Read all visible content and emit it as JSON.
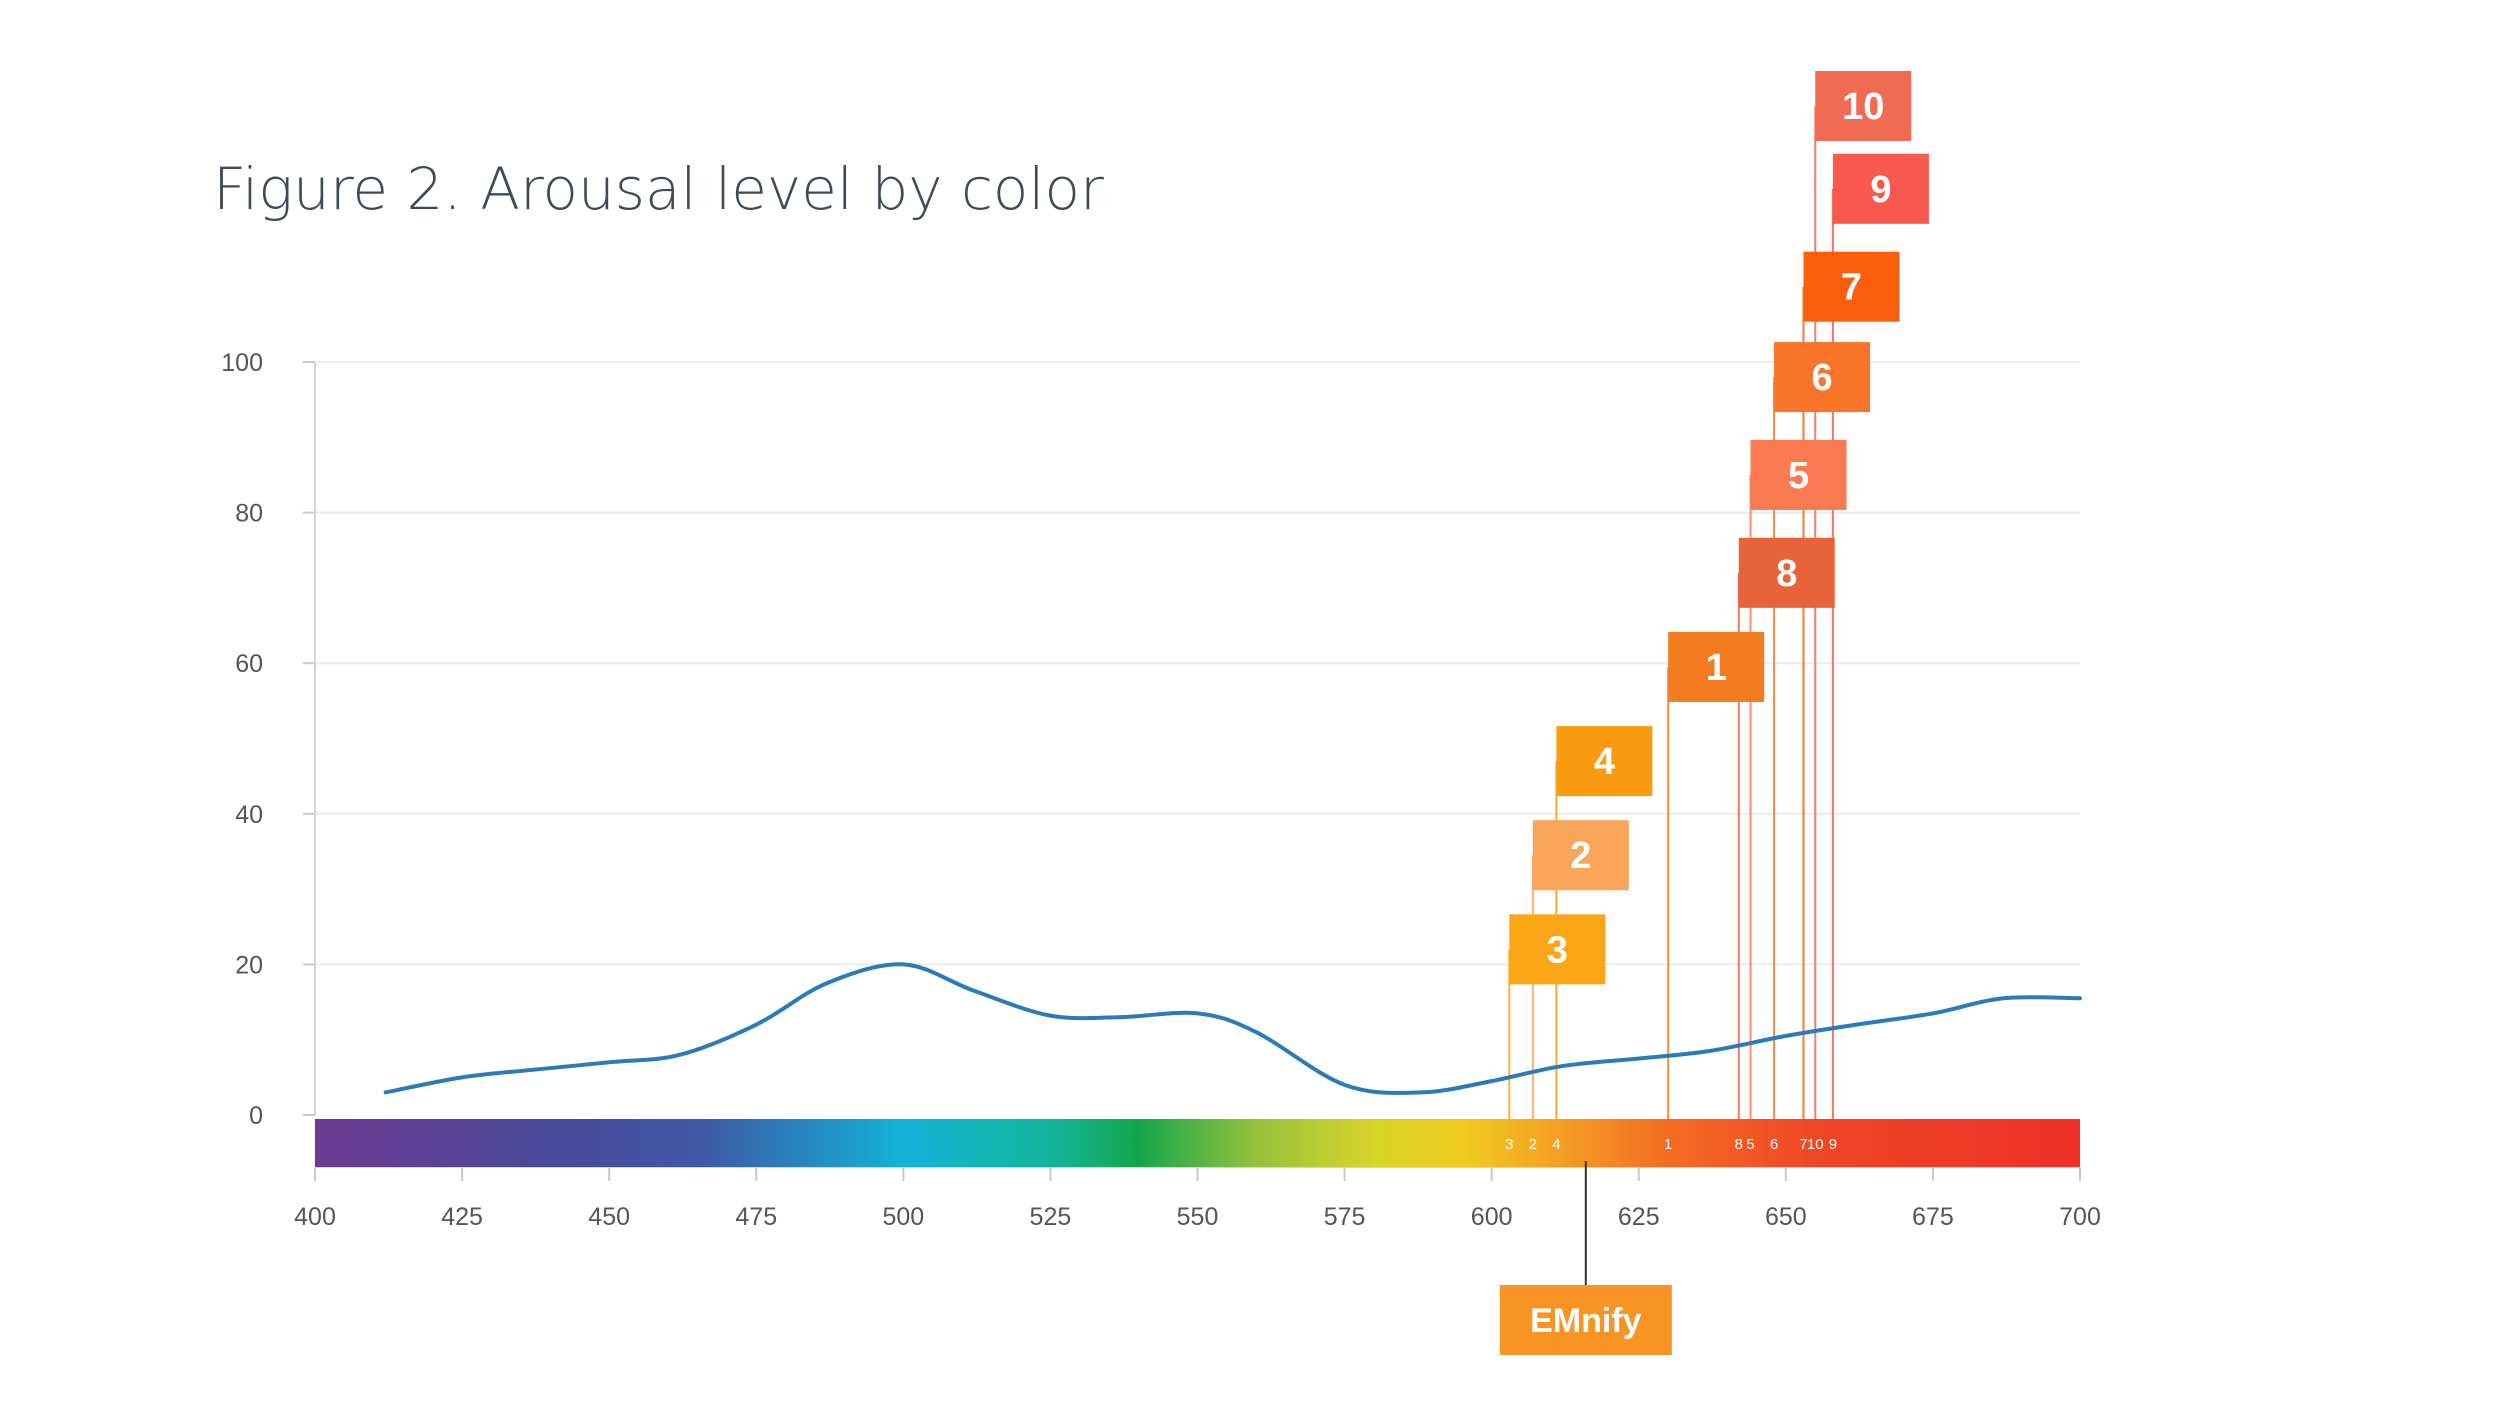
{
  "chart_data": {
    "type": "line",
    "title": "Figure 2. Arousal level by color",
    "xlim": [
      400,
      700
    ],
    "ylim": [
      0,
      100
    ],
    "x_ticks": [
      400,
      425,
      450,
      475,
      500,
      525,
      550,
      575,
      600,
      625,
      650,
      675,
      700
    ],
    "y_ticks": [
      0,
      20,
      40,
      60,
      80,
      100
    ],
    "grid": true,
    "series": [
      {
        "color": "#2b7bb9",
        "points": [
          [
            412,
            3
          ],
          [
            425,
            5
          ],
          [
            437,
            6
          ],
          [
            450,
            7
          ],
          [
            462,
            8
          ],
          [
            475,
            12
          ],
          [
            487,
            17.5
          ],
          [
            500,
            20
          ],
          [
            512,
            16.5
          ],
          [
            525,
            13.2
          ],
          [
            537,
            13
          ],
          [
            550,
            13.5
          ],
          [
            560,
            11
          ],
          [
            575,
            4
          ],
          [
            588,
            3
          ],
          [
            600,
            4.5
          ],
          [
            612,
            6.5
          ],
          [
            625,
            7.5
          ],
          [
            637,
            8.5
          ],
          [
            650,
            10.5
          ],
          [
            662,
            12
          ],
          [
            675,
            13.5
          ],
          [
            687,
            15.5
          ],
          [
            700,
            15.5
          ]
        ]
      }
    ],
    "markers": [
      {
        "label": "1",
        "wavelength": 630,
        "level": 59.5,
        "color": "#f47c20"
      },
      {
        "label": "2",
        "wavelength": 607,
        "level": 34.5,
        "color": "#f9a55a"
      },
      {
        "label": "3",
        "wavelength": 603,
        "level": 22,
        "color": "#fba617"
      },
      {
        "label": "4",
        "wavelength": 611,
        "level": 47,
        "color": "#f99b10"
      },
      {
        "label": "5",
        "wavelength": 644,
        "level": 85,
        "color": "#fb7a51"
      },
      {
        "label": "6",
        "wavelength": 648,
        "level": 98,
        "color": "#f8752a"
      },
      {
        "label": "7",
        "wavelength": 653,
        "level": 110,
        "color": "#fc5f0b"
      },
      {
        "label": "8",
        "wavelength": 642,
        "level": 72,
        "color": "#e8623a"
      },
      {
        "label": "9",
        "wavelength": 658,
        "level": 123,
        "color": "#f9584f"
      },
      {
        "label": "10",
        "wavelength": 655,
        "level": 134,
        "color": "#f06b54"
      }
    ],
    "spectrum_band_stops": [
      {
        "wavelength": 400,
        "color": "#6e3a92"
      },
      {
        "wavelength": 440,
        "color": "#4a4a9c"
      },
      {
        "wavelength": 465,
        "color": "#3f57a6"
      },
      {
        "wavelength": 500,
        "color": "#12b3d8"
      },
      {
        "wavelength": 525,
        "color": "#13b59a"
      },
      {
        "wavelength": 540,
        "color": "#14a64b"
      },
      {
        "wavelength": 560,
        "color": "#96c23c"
      },
      {
        "wavelength": 580,
        "color": "#d8d428"
      },
      {
        "wavelength": 595,
        "color": "#f0cb1e"
      },
      {
        "wavelength": 610,
        "color": "#f5a224"
      },
      {
        "wavelength": 630,
        "color": "#f46c23"
      },
      {
        "wavelength": 655,
        "color": "#ef4626"
      },
      {
        "wavelength": 700,
        "color": "#ee3127"
      }
    ],
    "brand": {
      "label": "EMnify",
      "wavelength": 616,
      "color": "#f79423"
    }
  }
}
